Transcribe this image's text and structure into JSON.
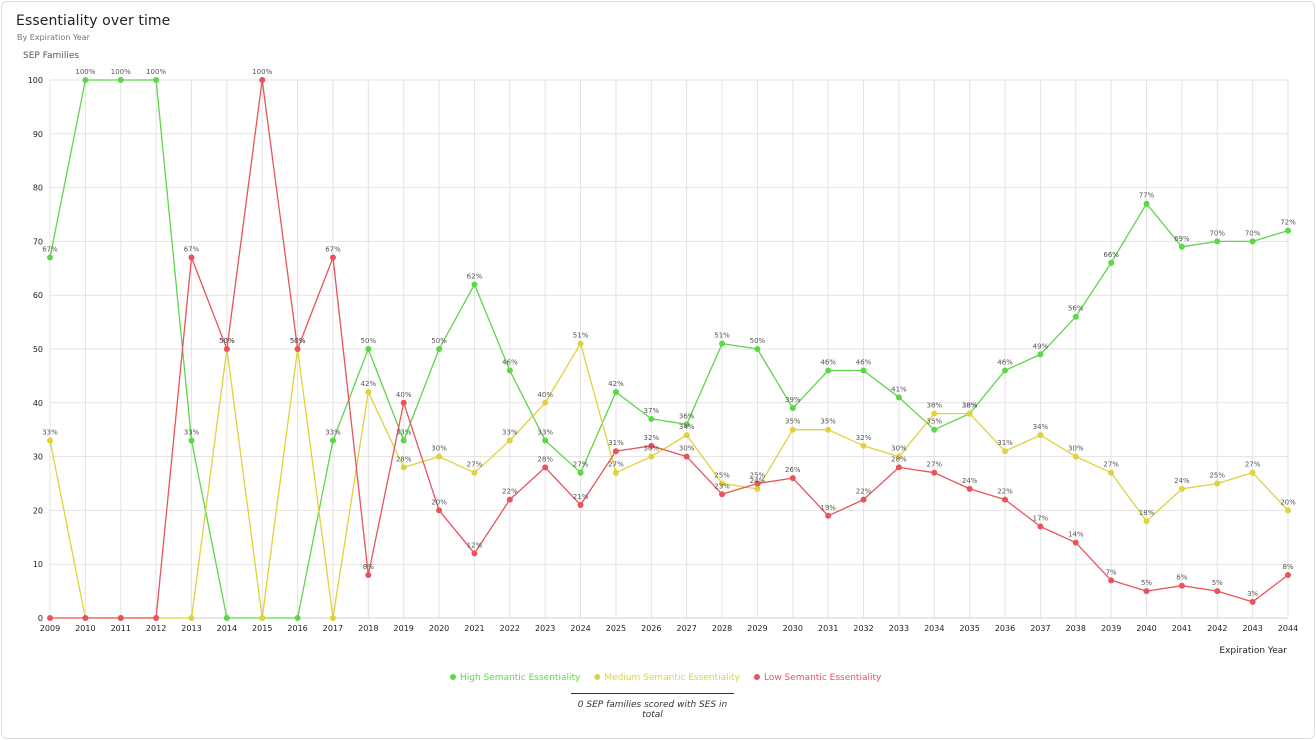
{
  "header": {
    "title": "Essentiality over time",
    "subtitle": "By Expiration Year"
  },
  "footer": {
    "note": "0 SEP families scored with SES in total"
  },
  "colors": {
    "high": "#5fd54a",
    "medium": "#dfd23e",
    "low": "#e8545c",
    "grid": "#e3e3e3",
    "axis_text": "#222222",
    "label_text": "#555555"
  },
  "chart_data": {
    "type": "line",
    "title": "Essentiality over time",
    "subtitle": "By Expiration Year",
    "xlabel": "Expiration Year",
    "ylabel": "SEP Families",
    "ylim": [
      0,
      100
    ],
    "yticks": [
      0,
      10,
      20,
      30,
      40,
      50,
      60,
      70,
      80,
      90,
      100
    ],
    "grid": true,
    "legend_position": "bottom-center",
    "categories": [
      "2009",
      "2010",
      "2011",
      "2012",
      "2013",
      "2014",
      "2015",
      "2016",
      "2017",
      "2018",
      "2019",
      "2020",
      "2021",
      "2022",
      "2023",
      "2024",
      "2025",
      "2026",
      "2027",
      "2028",
      "2029",
      "2030",
      "2031",
      "2032",
      "2033",
      "2034",
      "2035",
      "2036",
      "2037",
      "2038",
      "2039",
      "2040",
      "2041",
      "2042",
      "2043",
      "2044"
    ],
    "series": [
      {
        "name": "High Semantic Essentiality",
        "color": "#5fd54a",
        "values": [
          67,
          100,
          100,
          100,
          33,
          0,
          0,
          0,
          33,
          50,
          33,
          50,
          62,
          46,
          33,
          27,
          42,
          37,
          36,
          51,
          50,
          39,
          46,
          46,
          41,
          35,
          38,
          46,
          49,
          56,
          66,
          77,
          69,
          70,
          70,
          72
        ],
        "labels": [
          "67%",
          "100%",
          "100%",
          "100%",
          "33%",
          "",
          "",
          "",
          "33%",
          "50%",
          "33%",
          "50%",
          "62%",
          "46%",
          "33%",
          "27%",
          "42%",
          "37%",
          "36%",
          "51%",
          "50%",
          "39%",
          "46%",
          "46%",
          "41%",
          "35%",
          "38%",
          "46%",
          "49%",
          "56%",
          "66%",
          "77%",
          "69%",
          "70%",
          "70%",
          "72%"
        ]
      },
      {
        "name": "Medium Semantic Essentiality",
        "color": "#dfd23e",
        "values": [
          33,
          0,
          0,
          0,
          0,
          50,
          0,
          50,
          0,
          42,
          28,
          30,
          27,
          33,
          40,
          51,
          27,
          30,
          34,
          25,
          24,
          35,
          35,
          32,
          30,
          38,
          38,
          31,
          34,
          30,
          27,
          18,
          24,
          25,
          27,
          20
        ],
        "labels": [
          "33%",
          "",
          "",
          "",
          "",
          "50%",
          "",
          "50%",
          "",
          "42%",
          "28%",
          "30%",
          "27%",
          "33%",
          "40%",
          "51%",
          "27%",
          "30%",
          "34%",
          "25%",
          "24%",
          "35%",
          "35%",
          "32%",
          "30%",
          "38%",
          "38%",
          "31%",
          "34%",
          "30%",
          "27%",
          "18%",
          "24%",
          "25%",
          "27%",
          "20%"
        ]
      },
      {
        "name": "Low Semantic Essentiality",
        "color": "#e8545c",
        "values": [
          0,
          0,
          0,
          0,
          67,
          50,
          100,
          50,
          67,
          8,
          40,
          20,
          12,
          22,
          28,
          21,
          31,
          32,
          30,
          23,
          25,
          26,
          19,
          22,
          28,
          27,
          24,
          22,
          17,
          14,
          7,
          5,
          6,
          5,
          3,
          8
        ],
        "labels": [
          "",
          "",
          "",
          "",
          "67%",
          "50%",
          "100%",
          "50%",
          "67%",
          "8%",
          "40%",
          "20%",
          "12%",
          "22%",
          "28%",
          "21%",
          "31%",
          "32%",
          "30%",
          "23%",
          "25%",
          "26%",
          "19%",
          "22%",
          "28%",
          "27%",
          "24%",
          "22%",
          "17%",
          "14%",
          "7%",
          "5%",
          "6%",
          "5%",
          "3%",
          "8%"
        ]
      }
    ]
  }
}
